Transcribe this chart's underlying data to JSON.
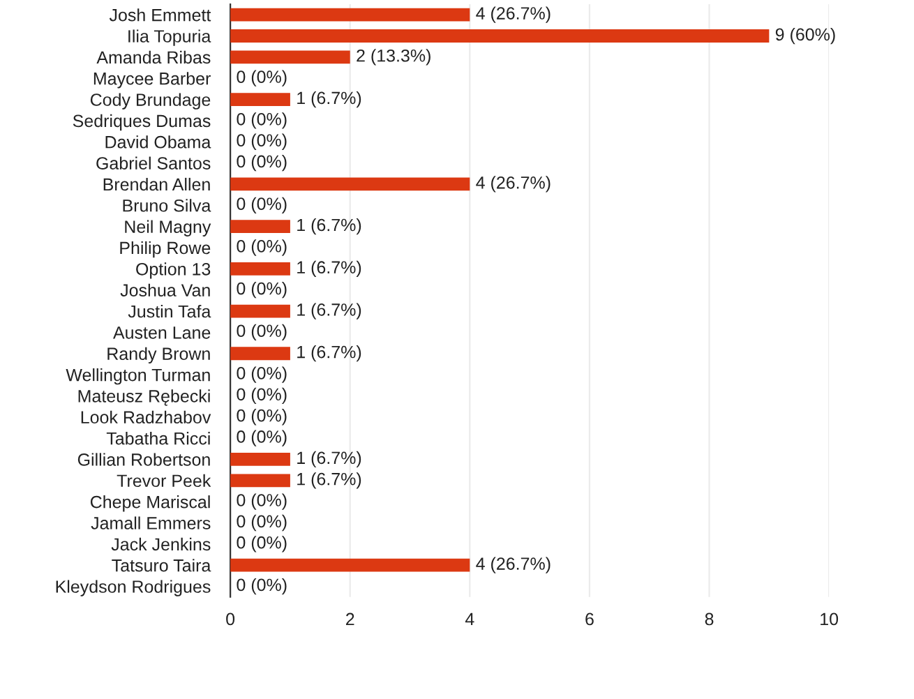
{
  "chart_data": {
    "type": "bar",
    "orientation": "horizontal",
    "categories": [
      "Josh Emmett",
      "Ilia Topuria",
      "Amanda Ribas",
      "Maycee Barber",
      "Cody Brundage",
      "Sedriques Dumas",
      "David Obama",
      "Gabriel Santos",
      "Brendan Allen",
      "Bruno Silva",
      "Neil Magny",
      "Philip Rowe",
      "Option 13",
      "Joshua Van",
      "Justin Tafa",
      "Austen Lane",
      "Randy Brown",
      "Wellington Turman",
      "Mateusz Rębecki",
      "Look Radzhabov",
      "Tabatha Ricci",
      "Gillian Robertson",
      "Trevor Peek",
      "Chepe Mariscal",
      "Jamall Emmers",
      "Jack Jenkins",
      "Tatsuro Taira",
      "Kleydson Rodrigues"
    ],
    "values": [
      4,
      9,
      2,
      0,
      1,
      0,
      0,
      0,
      4,
      0,
      1,
      0,
      1,
      0,
      1,
      0,
      1,
      0,
      0,
      0,
      0,
      1,
      1,
      0,
      0,
      0,
      4,
      0
    ],
    "value_labels": [
      "4 (26.7%)",
      "9 (60%)",
      "2 (13.3%)",
      "0 (0%)",
      "1 (6.7%)",
      "0 (0%)",
      "0 (0%)",
      "0 (0%)",
      "4 (26.7%)",
      "0 (0%)",
      "1 (6.7%)",
      "0 (0%)",
      "1 (6.7%)",
      "0 (0%)",
      "1 (6.7%)",
      "0 (0%)",
      "1 (6.7%)",
      "0 (0%)",
      "0 (0%)",
      "0 (0%)",
      "0 (0%)",
      "1 (6.7%)",
      "1 (6.7%)",
      "0 (0%)",
      "0 (0%)",
      "0 (0%)",
      "4 (26.7%)",
      "0 (0%)"
    ],
    "color": "#dc3912",
    "xlim": [
      0,
      10
    ],
    "xticks": [
      0,
      2,
      4,
      6,
      8,
      10
    ],
    "grid": "x",
    "legend": false
  }
}
